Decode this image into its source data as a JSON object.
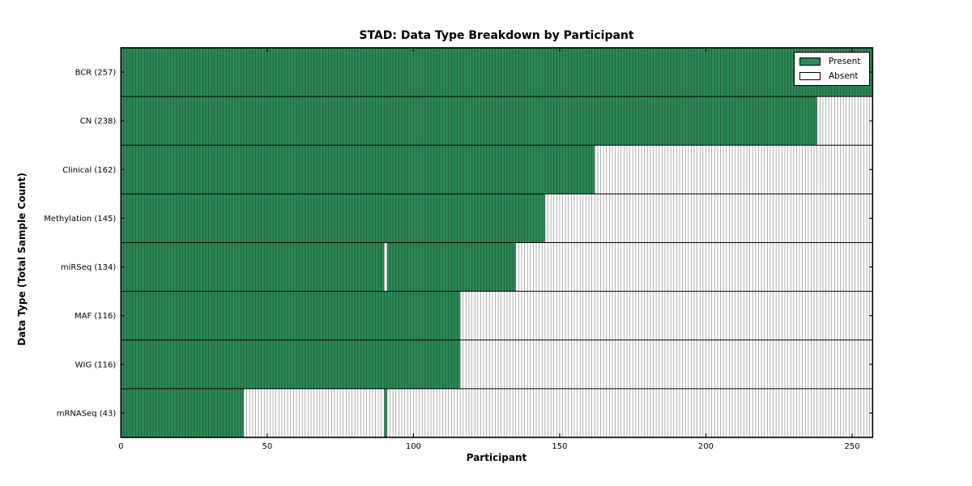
{
  "chart_data": {
    "type": "heatmap",
    "title": "STAD: Data Type Breakdown by Participant",
    "xlabel": "Participant",
    "ylabel": "Data Type (Total Sample Count)",
    "xlim": [
      0,
      257
    ],
    "total_participants": 257,
    "x_ticks": [
      0,
      50,
      100,
      150,
      200,
      250
    ],
    "grid": false,
    "legend_position": "upper right",
    "legend": [
      {
        "label": "Present",
        "color": "#2E8B57"
      },
      {
        "label": "Absent",
        "color": "#FFFFFF"
      }
    ],
    "colors": {
      "present": "#2E8B57",
      "absent": "#FFFFFF",
      "edge": "#000000"
    },
    "rows": [
      {
        "name": "BCR",
        "count": 257,
        "label": "BCR (257)",
        "present_ranges": [
          [
            0,
            257
          ]
        ]
      },
      {
        "name": "CN",
        "count": 238,
        "label": "CN (238)",
        "present_ranges": [
          [
            0,
            238
          ]
        ]
      },
      {
        "name": "Clinical",
        "count": 162,
        "label": "Clinical (162)",
        "present_ranges": [
          [
            0,
            162
          ]
        ]
      },
      {
        "name": "Methylation",
        "count": 145,
        "label": "Methylation (145)",
        "present_ranges": [
          [
            0,
            145
          ]
        ]
      },
      {
        "name": "miRSeq",
        "count": 134,
        "label": "miRSeq (134)",
        "present_ranges": [
          [
            0,
            90
          ],
          [
            91,
            135
          ]
        ]
      },
      {
        "name": "MAF",
        "count": 116,
        "label": "MAF (116)",
        "present_ranges": [
          [
            0,
            116
          ]
        ]
      },
      {
        "name": "WIG",
        "count": 116,
        "label": "WIG (116)",
        "present_ranges": [
          [
            0,
            116
          ]
        ]
      },
      {
        "name": "mRNASeq",
        "count": 43,
        "label": "mRNASeq (43)",
        "present_ranges": [
          [
            0,
            42
          ],
          [
            90,
            91
          ]
        ]
      }
    ]
  }
}
